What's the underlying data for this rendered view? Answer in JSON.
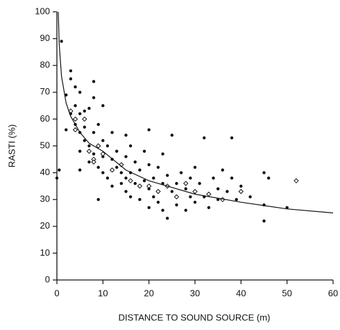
{
  "chart_data": {
    "type": "scatter",
    "x_label": "DISTANCE TO SOUND SOURCE (m)",
    "y_label": "RASTI (%)",
    "xlim": [
      0,
      60
    ],
    "xticks": [
      0,
      10,
      20,
      30,
      40,
      50,
      60
    ],
    "ylim": [
      0,
      100
    ],
    "yticks": [
      0,
      10,
      20,
      30,
      40,
      50,
      60,
      70,
      80,
      90,
      100
    ],
    "series": [
      {
        "marker": "filled",
        "color": "#111111",
        "x": [
          0,
          0.5,
          1,
          2,
          2,
          3,
          3,
          3,
          4,
          4,
          4,
          5,
          5,
          5,
          5,
          5,
          6,
          6,
          6,
          7,
          7,
          7,
          8,
          8,
          8,
          8,
          9,
          9,
          9,
          10,
          10,
          10,
          10,
          11,
          11,
          12,
          12,
          12,
          13,
          13,
          14,
          14,
          15,
          15,
          15,
          15,
          16,
          16,
          16,
          17,
          17,
          18,
          18,
          19,
          19,
          20,
          20,
          20,
          20,
          21,
          21,
          22,
          22,
          23,
          23,
          23,
          24,
          24,
          25,
          25,
          26,
          26,
          27,
          28,
          28,
          29,
          29,
          30,
          30,
          31,
          32,
          32,
          33,
          34,
          35,
          35,
          36,
          37,
          38,
          38,
          39,
          40,
          42,
          45,
          45,
          45,
          46,
          50
        ],
        "values": [
          38,
          41,
          89,
          69,
          56,
          78,
          75,
          62,
          72,
          65,
          58,
          70,
          62,
          55,
          48,
          41,
          63,
          57,
          52,
          64,
          50,
          44,
          74,
          68,
          55,
          47,
          58,
          42,
          30,
          65,
          52,
          46,
          40,
          50,
          38,
          55,
          45,
          35,
          48,
          42,
          40,
          36,
          54,
          46,
          38,
          33,
          50,
          40,
          31,
          44,
          36,
          41,
          30,
          48,
          37,
          56,
          43,
          34,
          27,
          38,
          31,
          42,
          29,
          47,
          36,
          26,
          39,
          23,
          54,
          33,
          36,
          28,
          40,
          34,
          26,
          38,
          31,
          42,
          29,
          36,
          53,
          31,
          27,
          38,
          34,
          30,
          41,
          33,
          38,
          53,
          30,
          35,
          31,
          40,
          28,
          22,
          38,
          27
        ]
      },
      {
        "marker": "open",
        "color": "#111111",
        "x": [
          3,
          4,
          6,
          7,
          8,
          9,
          10,
          12,
          14,
          16,
          18,
          20,
          22,
          24,
          26,
          28,
          30,
          33,
          36,
          40,
          52,
          8,
          4
        ],
        "values": [
          63,
          60,
          60,
          48,
          45,
          50,
          47,
          41,
          43,
          37,
          35,
          35,
          33,
          35,
          31,
          36,
          33,
          32,
          30,
          33,
          37,
          44,
          56
        ]
      }
    ],
    "curve": {
      "type": "line",
      "color": "#111111",
      "x": [
        0.3,
        0.5,
        1,
        2,
        3,
        5,
        7,
        10,
        15,
        20,
        25,
        30,
        40,
        50,
        60
      ],
      "values": [
        100,
        88,
        76,
        66,
        61,
        55,
        51,
        48,
        41,
        37,
        34.5,
        32,
        29,
        26.5,
        25
      ]
    }
  }
}
